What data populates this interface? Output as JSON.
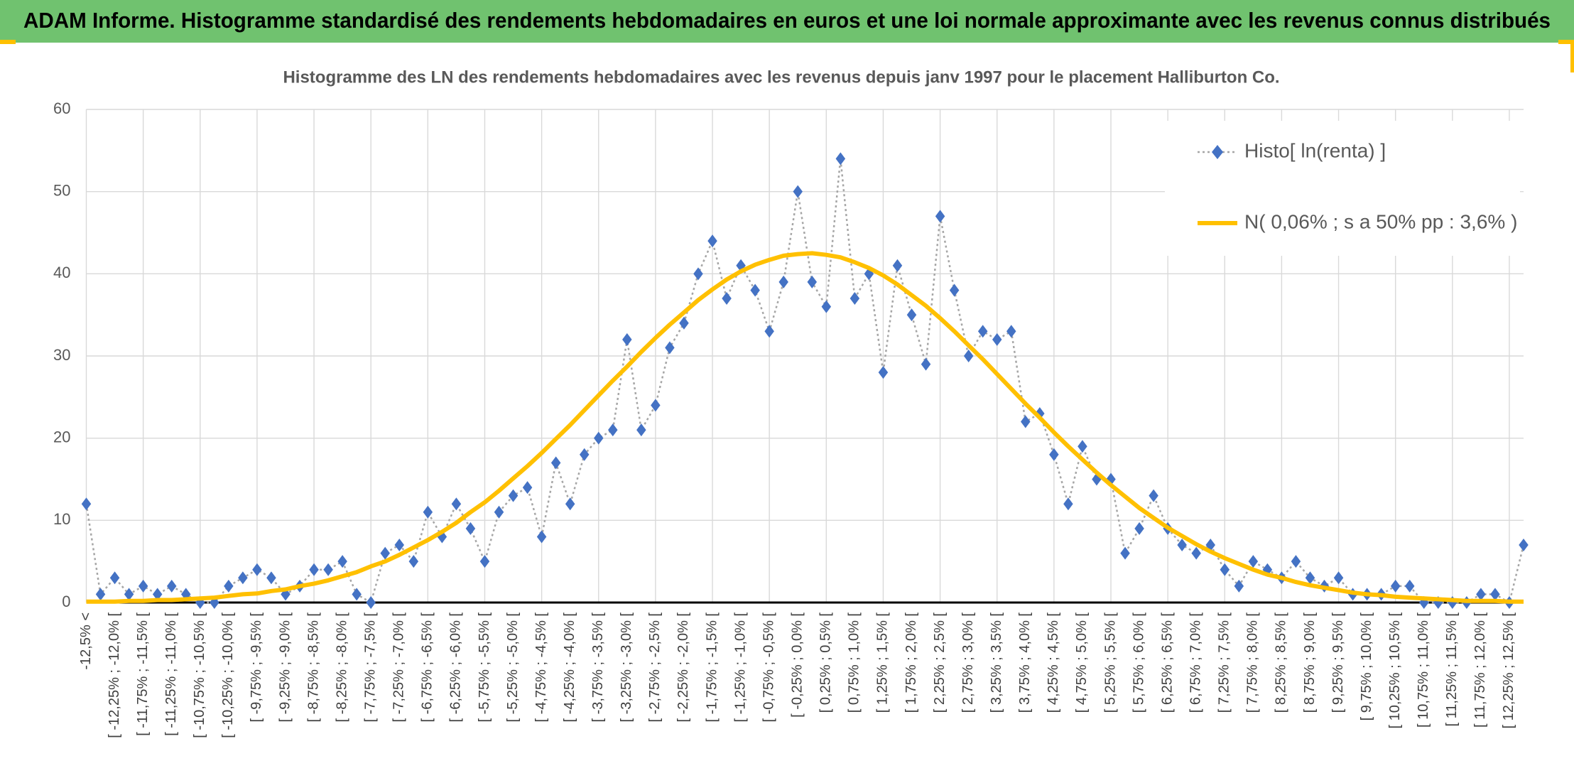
{
  "header": {
    "title": "ADAM Informe. Histogramme standardisé des rendements hebdomadaires en euros et une loi normale approximante avec les revenus connus distribués"
  },
  "chart_data": {
    "type": "line",
    "title": "Histogramme des LN des rendements hebdomadaires avec les revenus depuis janv 1997 pour le placement Halliburton Co.",
    "categories": [
      "-12,5% <",
      null,
      "[ -12,25% ; -12,0% [",
      null,
      "[ -11,75% ; -11,5% [",
      null,
      "[ -11,25% ; -11,0% [",
      null,
      "[ -10,75% ; -10,5% [",
      null,
      "[ -10,25% ; -10,0% [",
      null,
      "[ -9,75% ; -9,5% [",
      null,
      "[ -9,25% ; -9,0% [",
      null,
      "[ -8,75% ; -8,5% [",
      null,
      "[ -8,25% ; -8,0% [",
      null,
      "[ -7,75% ; -7,5% [",
      null,
      "[ -7,25% ; -7,0% [",
      null,
      "[ -6,75% ; -6,5% [",
      null,
      "[ -6,25% ; -6,0% [",
      null,
      "[ -5,75% ; -5,5% [",
      null,
      "[ -5,25% ; -5,0% [",
      null,
      "[ -4,75% ; -4,5% [",
      null,
      "[ -4,25% ; -4,0% [",
      null,
      "[ -3,75% ; -3,5% [",
      null,
      "[ -3,25% ; -3,0% [",
      null,
      "[ -2,75% ; -2,5% [",
      null,
      "[ -2,25% ; -2,0% [",
      null,
      "[ -1,75% ; -1,5% [",
      null,
      "[ -1,25% ; -1,0% [",
      null,
      "[ -0,75% ; -0,5% [",
      null,
      "[ -0,25% ; 0,0% [",
      null,
      "[ 0,25% ; 0,5% [",
      null,
      "[ 0,75% ; 1,0% [",
      null,
      "[ 1,25% ; 1,5% [",
      null,
      "[ 1,75% ; 2,0% [",
      null,
      "[ 2,25% ; 2,5% [",
      null,
      "[ 2,75% ; 3,0% [",
      null,
      "[ 3,25% ; 3,5% [",
      null,
      "[ 3,75% ; 4,0% [",
      null,
      "[ 4,25% ; 4,5% [",
      null,
      "[ 4,75% ; 5,0% [",
      null,
      "[ 5,25% ; 5,5% [",
      null,
      "[ 5,75% ; 6,0% [",
      null,
      "[ 6,25% ; 6,5% [",
      null,
      "[ 6,75% ; 7,0% [",
      null,
      "[ 7,25% ; 7,5% [",
      null,
      "[ 7,75% ; 8,0% [",
      null,
      "[ 8,25% ; 8,5% [",
      null,
      "[ 8,75% ; 9,0% [",
      null,
      "[ 9,25% ; 9,5% [",
      null,
      "[ 9,75% ; 10,0% [",
      null,
      "[ 10,25% ; 10,5% [",
      null,
      "[ 10,75% ; 11,0% [",
      null,
      "[ 11,25% ; 11,5% [",
      null,
      "[ 11,75% ; 12,0% [",
      null,
      "[ 12,25% ; 12,5% [",
      null
    ],
    "series": [
      {
        "name": "Histo[ ln(renta) ]",
        "color": "#4472c4",
        "line_color": "#a6a6a6",
        "values": [
          12,
          1,
          3,
          1,
          2,
          1,
          2,
          1,
          0,
          0,
          2,
          3,
          4,
          3,
          1,
          2,
          4,
          4,
          5,
          1,
          0,
          6,
          7,
          5,
          11,
          8,
          12,
          9,
          5,
          11,
          13,
          14,
          8,
          17,
          12,
          18,
          20,
          21,
          32,
          21,
          24,
          31,
          34,
          40,
          44,
          37,
          41,
          38,
          33,
          39,
          50,
          39,
          36,
          54,
          37,
          40,
          28,
          41,
          35,
          29,
          47,
          38,
          30,
          33,
          32,
          33,
          22,
          23,
          18,
          12,
          19,
          15,
          15,
          6,
          9,
          13,
          9,
          7,
          6,
          7,
          4,
          2,
          5,
          4,
          3,
          5,
          3,
          2,
          3,
          1,
          1,
          1,
          2,
          2,
          0,
          0,
          0,
          0,
          1,
          1,
          0,
          7
        ]
      },
      {
        "name": "N( 0,06% ; s a 50% pp : 3,6% )",
        "color": "#ffc000",
        "values": [
          0.1,
          0.1,
          0.1,
          0.2,
          0.2,
          0.3,
          0.3,
          0.4,
          0.5,
          0.6,
          0.8,
          1.0,
          1.1,
          1.4,
          1.6,
          2.0,
          2.3,
          2.7,
          3.2,
          3.7,
          4.4,
          5.0,
          5.8,
          6.7,
          7.6,
          8.6,
          9.7,
          11.0,
          12.2,
          13.6,
          15.1,
          16.6,
          18.2,
          19.9,
          21.6,
          23.4,
          25.2,
          27.0,
          28.7,
          30.5,
          32.2,
          33.8,
          35.3,
          36.8,
          38.1,
          39.3,
          40.3,
          41.1,
          41.7,
          42.2,
          42.4,
          42.5,
          42.3,
          42.0,
          41.4,
          40.7,
          39.8,
          38.7,
          37.4,
          36.1,
          34.6,
          33.0,
          31.3,
          29.6,
          27.8,
          26.0,
          24.2,
          22.5,
          20.7,
          19.0,
          17.4,
          15.8,
          14.3,
          12.9,
          11.5,
          10.3,
          9.1,
          8.1,
          7.1,
          6.2,
          5.4,
          4.7,
          4.0,
          3.4,
          3.0,
          2.5,
          2.1,
          1.8,
          1.5,
          1.2,
          1.0,
          0.9,
          0.7,
          0.6,
          0.5,
          0.4,
          0.3,
          0.2,
          0.2,
          0.2,
          0.1,
          0.1
        ]
      }
    ],
    "ylim": [
      0,
      60
    ],
    "yticks": [
      0,
      10,
      20,
      30,
      40,
      50,
      60
    ],
    "grid": true,
    "legend": "upper right"
  }
}
